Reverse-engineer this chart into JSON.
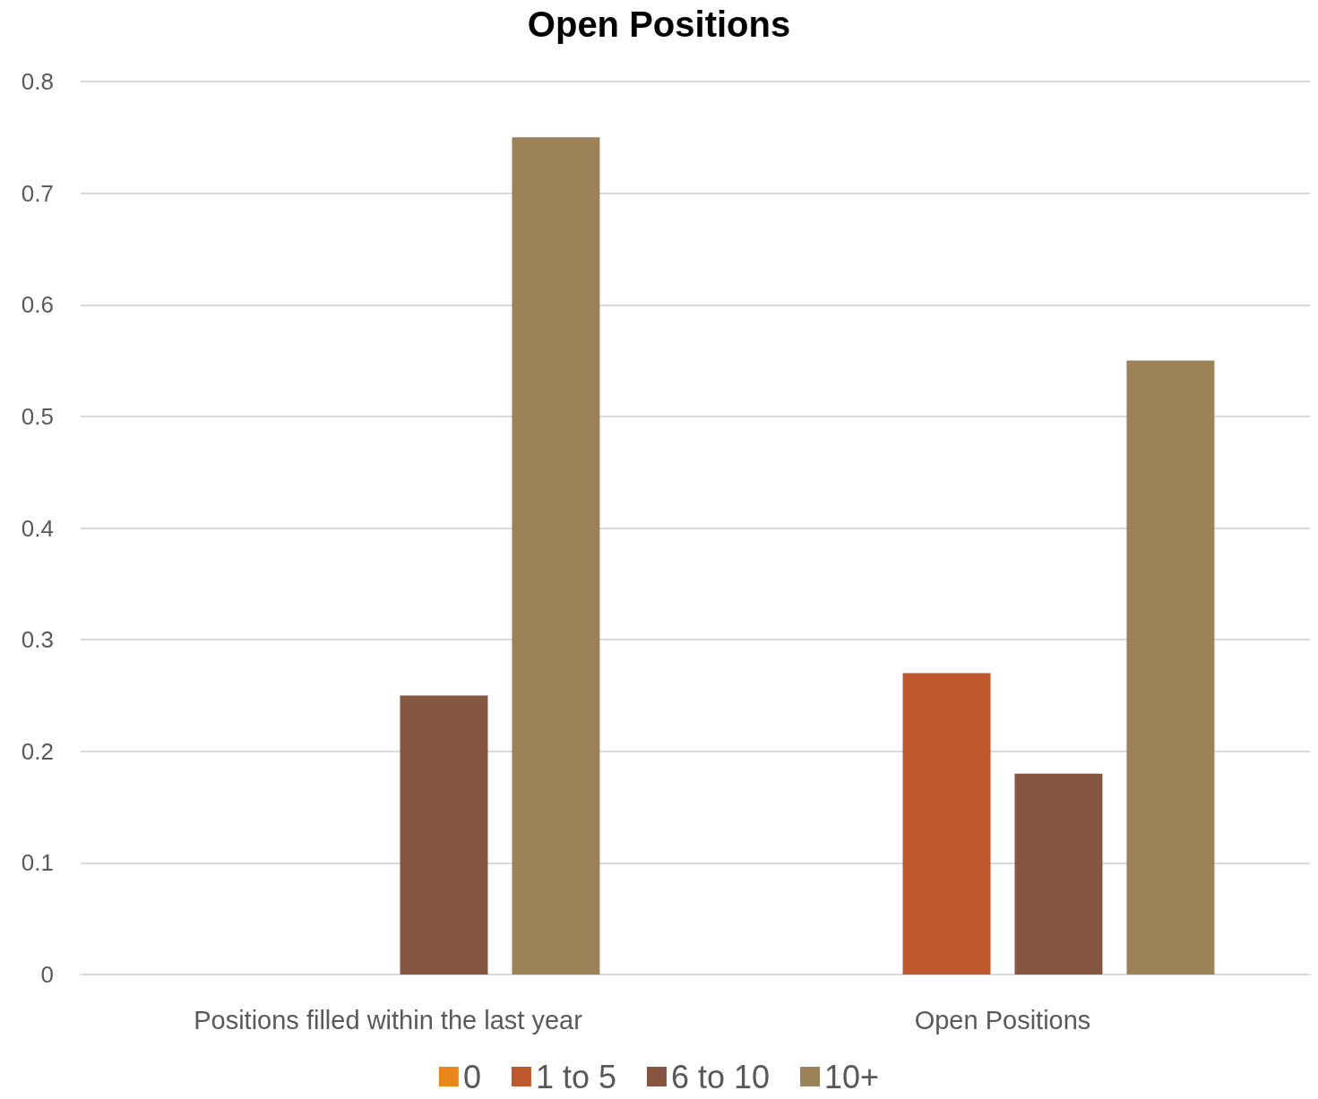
{
  "chart_data": {
    "type": "bar",
    "title": "Open Positions",
    "categories": [
      "Positions filled within the last year",
      "Open Positions"
    ],
    "series": [
      {
        "name": "0",
        "color": "#e8861a",
        "values": [
          0,
          0
        ]
      },
      {
        "name": "1 to 5",
        "color": "#bc582c",
        "values": [
          0,
          0.27
        ]
      },
      {
        "name": "6 to 10",
        "color": "#865640",
        "values": [
          0.25,
          0.18
        ]
      },
      {
        "name": "10+",
        "color": "#9c8357",
        "values": [
          0.75,
          0.55
        ]
      }
    ],
    "ylim": [
      0,
      0.8
    ],
    "yticks": [
      0,
      0.1,
      0.2,
      0.3,
      0.4,
      0.5,
      0.6,
      0.7,
      0.8
    ],
    "grid": "y",
    "legend": "bottom"
  }
}
